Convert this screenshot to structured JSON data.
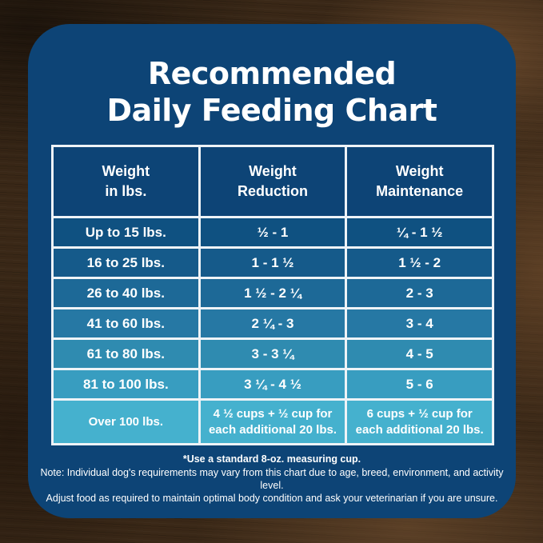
{
  "title": "Recommended\nDaily Feeding Chart",
  "colors": {
    "card_bg": "#0d4476",
    "header_bg": "#0d4476",
    "table_border": "#eef3f7",
    "text": "#ffffff"
  },
  "table": {
    "headers": [
      "Weight\nin lbs.",
      "Weight\nReduction",
      "Weight\nMaintenance"
    ],
    "rows": [
      {
        "bg": "#0f5181",
        "cells": [
          "Up to 15 lbs.",
          "½ - 1",
          "¼ - 1 ½"
        ]
      },
      {
        "bg": "#155a8a",
        "cells": [
          "16 to 25 lbs.",
          "1 - 1 ½",
          "1 ½ - 2"
        ]
      },
      {
        "bg": "#1d6997",
        "cells": [
          "26 to 40 lbs.",
          "1 ½ - 2 ¼",
          "2 - 3"
        ]
      },
      {
        "bg": "#2678a4",
        "cells": [
          "41 to 60 lbs.",
          "2 ¼ - 3",
          "3 - 4"
        ]
      },
      {
        "bg": "#2f8bb0",
        "cells": [
          "61 to 80 lbs.",
          "3 - 3 ¼",
          "4 - 5"
        ]
      },
      {
        "bg": "#389dc0",
        "cells": [
          "81 to 100 lbs.",
          "3 ¼ - 4 ½",
          "5 - 6"
        ]
      },
      {
        "bg": "#45b1ce",
        "cells": [
          "Over 100 lbs.",
          "4 ½ cups  + ½ cup for\neach additional 20 lbs.",
          "6 cups  + ½ cup for\neach additional 20 lbs."
        ]
      }
    ]
  },
  "footer": {
    "measuring_note": "*Use a standard 8-oz. measuring cup.",
    "note_line1": "Note: Individual dog's requirements may vary from this chart due to age, breed, environment, and activity level.",
    "note_line2": "Adjust food as required to maintain optimal body condition and ask your veterinarian if you are unsure."
  },
  "chart_data": {
    "type": "table",
    "title": "Recommended Daily Feeding Chart",
    "columns": [
      "Weight in lbs.",
      "Weight Reduction",
      "Weight Maintenance"
    ],
    "rows": [
      [
        "Up to 15 lbs.",
        "½ - 1",
        "¼ - 1 ½"
      ],
      [
        "16 to 25 lbs.",
        "1 - 1 ½",
        "1 ½ - 2"
      ],
      [
        "26 to 40 lbs.",
        "1 ½ - 2 ¼",
        "2 - 3"
      ],
      [
        "41 to 60 lbs.",
        "2 ¼ - 3",
        "3 - 4"
      ],
      [
        "61 to 80 lbs.",
        "3 - 3 ¼",
        "4 - 5"
      ],
      [
        "81 to 100 lbs.",
        "3 ¼ - 4 ½",
        "5 - 6"
      ],
      [
        "Over 100 lbs.",
        "4 ½ cups + ½ cup for each additional 20 lbs.",
        "6 cups + ½ cup for each additional 20 lbs."
      ]
    ],
    "footnote": "*Use a standard 8-oz. measuring cup."
  }
}
